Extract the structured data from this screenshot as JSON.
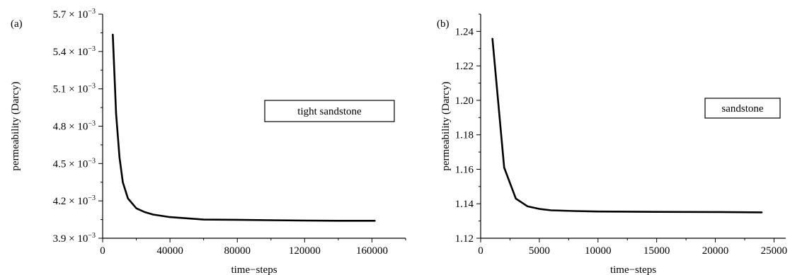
{
  "chart_data": [
    {
      "type": "line",
      "panel_label": "(a)",
      "xlabel": "time−steps",
      "ylabel": "permeability (Darcy)",
      "legend": "tight sandstone",
      "xlim": [
        0,
        180000
      ],
      "ylim": [
        0.0039,
        0.0057
      ],
      "xticks": [
        0,
        40000,
        80000,
        120000,
        160000
      ],
      "xtick_labels": [
        "0",
        "40000",
        "80000",
        "120000",
        "160000"
      ],
      "yticks": [
        0.0039,
        0.0042,
        0.0045,
        0.0048,
        0.0051,
        0.0054,
        0.0057
      ],
      "ytick_labels": [
        "3.9",
        "4.2",
        "4.5",
        "4.8",
        "5.1",
        "5.4",
        "5.7"
      ],
      "ytick_suffix": "× 10",
      "ytick_exponent": "−3",
      "x": [
        6000,
        8000,
        10000,
        12000,
        15000,
        20000,
        25000,
        30000,
        40000,
        50000,
        60000,
        80000,
        100000,
        120000,
        140000,
        162000
      ],
      "y": [
        0.00554,
        0.0049,
        0.00455,
        0.00435,
        0.00422,
        0.00414,
        0.00411,
        0.00409,
        0.00407,
        0.00406,
        0.00405,
        0.004048,
        0.004045,
        0.004042,
        0.00404,
        0.00404
      ]
    },
    {
      "type": "line",
      "panel_label": "(b)",
      "xlabel": "time−steps",
      "ylabel": "permeability (Darcy)",
      "legend": "sandstone",
      "xlim": [
        0,
        26000
      ],
      "ylim": [
        1.12,
        1.25
      ],
      "xticks": [
        0,
        5000,
        10000,
        15000,
        20000,
        25000
      ],
      "xtick_labels": [
        "0",
        "5000",
        "10000",
        "15000",
        "20000",
        "25000"
      ],
      "yticks": [
        1.12,
        1.14,
        1.16,
        1.18,
        1.2,
        1.22,
        1.24
      ],
      "ytick_labels": [
        "1.12",
        "1.14",
        "1.16",
        "1.18",
        "1.20",
        "1.22",
        "1.24"
      ],
      "x": [
        1000,
        2000,
        3000,
        4000,
        5000,
        6000,
        8000,
        10000,
        15000,
        20000,
        24000
      ],
      "y": [
        1.236,
        1.161,
        1.143,
        1.1385,
        1.137,
        1.1362,
        1.1358,
        1.1355,
        1.1353,
        1.1352,
        1.135
      ]
    }
  ]
}
